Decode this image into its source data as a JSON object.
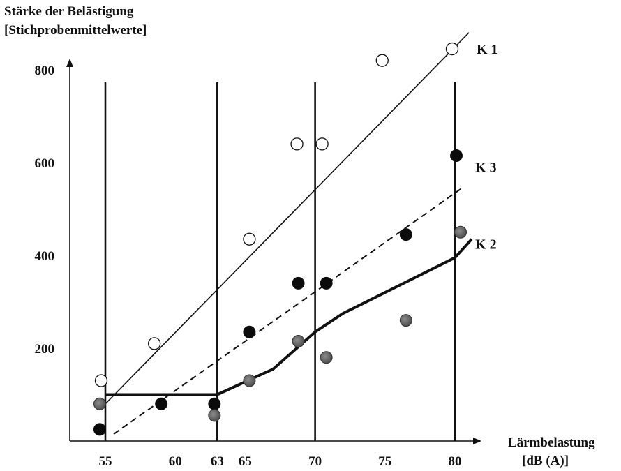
{
  "chart_data": {
    "type": "scatter",
    "title": "",
    "ylabel": [
      "Stärke der Belästigung",
      "[Stichprobenmittelwerte]"
    ],
    "xlabel": [
      "Lärmbelastung",
      "[dB (A)]"
    ],
    "xlim": [
      53.5,
      81.5
    ],
    "ylim": [
      0,
      870
    ],
    "x_ticks": [
      55,
      60,
      63,
      65,
      70,
      75,
      80
    ],
    "y_ticks": [
      200,
      400,
      600,
      800
    ],
    "vertical_lines_x": [
      55,
      63,
      70,
      80
    ],
    "grid": false,
    "series": [
      {
        "name": "K 1",
        "marker": "open-circle",
        "points": [
          [
            54.7,
            130
          ],
          [
            58.5,
            210
          ],
          [
            65.3,
            435
          ],
          [
            68.7,
            640
          ],
          [
            70.5,
            640
          ],
          [
            74.8,
            820
          ],
          [
            79.8,
            845
          ]
        ],
        "fit_line": {
          "style": "solid-thin",
          "points": [
            [
              55.0,
              80
            ],
            [
              81.0,
              880
            ]
          ]
        }
      },
      {
        "name": "K 3",
        "marker": "filled-black",
        "points": [
          [
            54.6,
            25
          ],
          [
            59.0,
            80
          ],
          [
            62.8,
            80
          ],
          [
            65.3,
            235
          ],
          [
            68.8,
            340
          ],
          [
            70.8,
            340
          ],
          [
            76.5,
            445
          ],
          [
            80.1,
            615
          ]
        ],
        "fit_line": {
          "style": "dashed",
          "points": [
            [
              55.6,
              15
            ],
            [
              80.5,
              545
            ]
          ]
        }
      },
      {
        "name": "K 2",
        "marker": "filled-gray",
        "points": [
          [
            54.6,
            80
          ],
          [
            62.8,
            55
          ],
          [
            65.3,
            130
          ],
          [
            68.8,
            215
          ],
          [
            70.8,
            180
          ],
          [
            76.5,
            260
          ],
          [
            80.4,
            450
          ]
        ],
        "fit_line": {
          "style": "solid-thick",
          "points": [
            [
              55.0,
              100
            ],
            [
              63.0,
              100
            ],
            [
              67.0,
              155
            ],
            [
              70.0,
              235
            ],
            [
              72.0,
              275
            ],
            [
              80.0,
              395
            ],
            [
              81.2,
              435
            ]
          ]
        }
      }
    ],
    "series_label_positions": {
      "K 1": [
        81.4,
        845
      ],
      "K 3": [
        81.3,
        590
      ],
      "K 2": [
        81.3,
        425
      ]
    }
  },
  "colors": {
    "axis": "#111111",
    "open_circle_fill": "#ffffff",
    "filled_black": "#0b0b0b",
    "filled_gray": "#6a6a6a"
  }
}
